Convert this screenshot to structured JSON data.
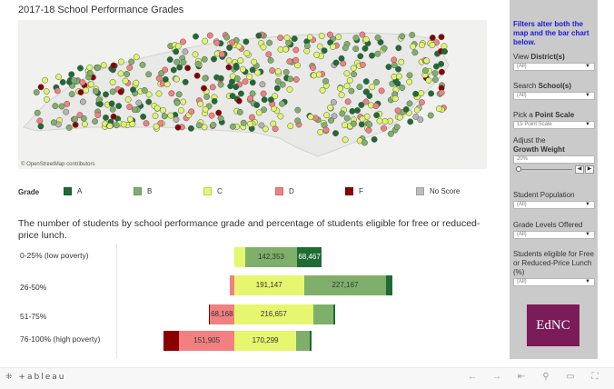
{
  "title": "2017-18 School Performance Grades",
  "map": {
    "credit": "© OpenStreetMap contributors",
    "marker_colors": [
      "#1e6b33",
      "#7fb06b",
      "#dff56a",
      "#f28080",
      "#8b0000",
      "#b4b4b4"
    ]
  },
  "legend": {
    "title": "Grade",
    "items": [
      {
        "label": "A",
        "color": "#1e6b33"
      },
      {
        "label": "B",
        "color": "#7fb06b"
      },
      {
        "label": "C",
        "color": "#e6f66f"
      },
      {
        "label": "D",
        "color": "#f28080"
      },
      {
        "label": "F",
        "color": "#8b0000"
      },
      {
        "label": "No Score",
        "color": "#bdbdbd"
      }
    ]
  },
  "subtitle": "The number of students by school performance grade and percentage of students eligible for free or reduced-price lunch.",
  "chart_data": {
    "type": "bar",
    "orientation": "horizontal-stacked",
    "categories": [
      "0-25% (low poverty)",
      "26-50%",
      "51-75%",
      "76-100% (high poverty)"
    ],
    "series": [
      {
        "name": "F",
        "color": "#8b0000",
        "values": [
          0,
          0,
          2000,
          42000
        ]
      },
      {
        "name": "D",
        "color": "#f28080",
        "values": [
          0,
          12000,
          68168,
          151905
        ]
      },
      {
        "name": "C",
        "color": "#e6f66f",
        "values": [
          30000,
          191147,
          216657,
          170299
        ]
      },
      {
        "name": "B",
        "color": "#7fb06b",
        "values": [
          142353,
          227167,
          55000,
          38000
        ]
      },
      {
        "name": "A",
        "color": "#1e6b33",
        "values": [
          68467,
          16000,
          5000,
          5000
        ]
      }
    ],
    "labels": [
      {
        "row": 0,
        "series": "B",
        "text": "142,353"
      },
      {
        "row": 0,
        "series": "A",
        "text": "68,467"
      },
      {
        "row": 1,
        "series": "C",
        "text": "191,147"
      },
      {
        "row": 1,
        "series": "B",
        "text": "227,167"
      },
      {
        "row": 2,
        "series": "D",
        "text": "68,168"
      },
      {
        "row": 2,
        "series": "C",
        "text": "216,657"
      },
      {
        "row": 3,
        "series": "D",
        "text": "151,905"
      },
      {
        "row": 3,
        "series": "C",
        "text": "170,299"
      }
    ],
    "baseline": "boundary between D and C"
  },
  "panel": {
    "note": "Filters alter both the map and the bar chart below.",
    "district_label_pre": "View ",
    "district_label_bold": "District(s)",
    "district_value": "(All)",
    "school_label_pre": "Search ",
    "school_label_bold": "School(s)",
    "school_value": "(All)",
    "scale_label_pre": "Pick a ",
    "scale_label_bold": "Point Scale",
    "scale_value": "15 Point Scale",
    "growth_label_pre": "Adjust the",
    "growth_label_bold": "Growth Weight",
    "growth_value": "20%",
    "population_label": "Student Population",
    "population_value": "(All)",
    "grades_label": "Grade Levels Offered",
    "grades_value": "(All)",
    "lunch_label": "Students eligible for Free or Reduced-Price Lunch (%)",
    "lunch_value": "(All)"
  },
  "logo": "EdNC",
  "footer": {
    "brand": "+ableau"
  }
}
